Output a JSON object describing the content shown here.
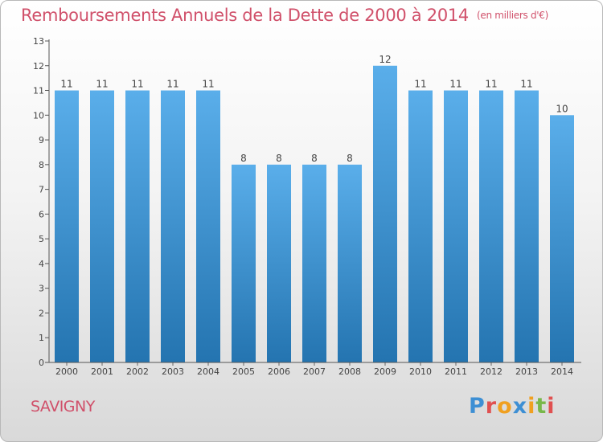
{
  "title": "Remboursements Annuels de la Dette de 2000 à 2014",
  "unit": "(en milliers d'€)",
  "commune": "SAVIGNY",
  "brand": "Proxiti",
  "colors": {
    "title": "#d0506a",
    "bar_top": "#5aaeea",
    "bar_bottom": "#2474b0",
    "axis": "#444444"
  },
  "chart_data": {
    "type": "bar",
    "title": "Remboursements Annuels de la Dette de 2000 à 2014",
    "unit": "(en milliers d'€)",
    "categories": [
      "2000",
      "2001",
      "2002",
      "2003",
      "2004",
      "2005",
      "2006",
      "2007",
      "2008",
      "2009",
      "2010",
      "2011",
      "2012",
      "2013",
      "2014"
    ],
    "values": [
      11,
      11,
      11,
      11,
      11,
      8,
      8,
      8,
      8,
      12,
      11,
      11,
      11,
      11,
      10
    ],
    "ylim": [
      0,
      13
    ],
    "yticks": [
      0,
      1,
      2,
      3,
      4,
      5,
      6,
      7,
      8,
      9,
      10,
      11,
      12,
      13
    ],
    "grid": false,
    "legend": "none"
  }
}
